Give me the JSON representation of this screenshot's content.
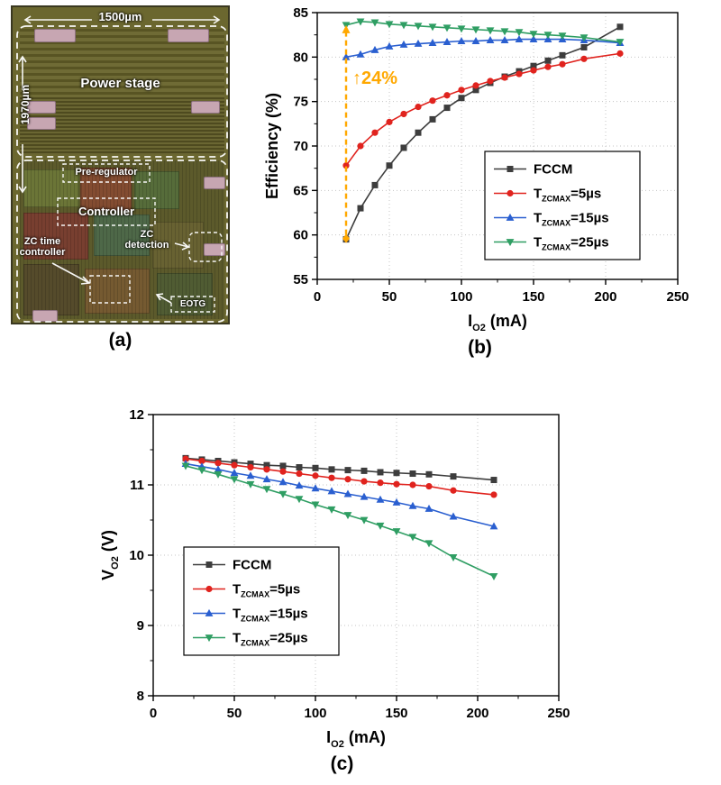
{
  "figure": {
    "caption_a": "(a)",
    "caption_b": "(b)",
    "caption_c": "(c)"
  },
  "die": {
    "width_label": "1500µm",
    "height_label": "1970µm",
    "power_stage": "Power stage",
    "pre_regulator": "Pre-regulator",
    "controller": "Controller",
    "zc_det_line1": "ZC",
    "zc_det_line2": "detection",
    "zc_time_line1": "ZC time",
    "zc_time_line2": "controller",
    "eotg": "EOTG"
  },
  "chart_data": [
    {
      "type": "line",
      "panel": "b",
      "title": "",
      "xlabel_parts": [
        {
          "t": "I"
        },
        {
          "t": "O2",
          "sub": true
        },
        {
          "t": " (mA)"
        }
      ],
      "ylabel_parts": [
        {
          "t": "Efficiency (%)"
        }
      ],
      "xlim": [
        0,
        250
      ],
      "ylim": [
        55,
        85
      ],
      "xticks": [
        0,
        50,
        100,
        150,
        200,
        250
      ],
      "yticks": [
        55,
        60,
        65,
        70,
        75,
        80,
        85
      ],
      "grid": true,
      "legend_position": "inside-right-bottom",
      "x": [
        20,
        30,
        40,
        50,
        60,
        70,
        80,
        90,
        100,
        110,
        120,
        130,
        140,
        150,
        160,
        170,
        185,
        210
      ],
      "series": [
        {
          "name": "FCCM",
          "label_parts": [
            {
              "t": "FCCM"
            }
          ],
          "color": "#3d3d3d",
          "marker": "square",
          "values": [
            59.5,
            63.0,
            65.6,
            67.8,
            69.8,
            71.5,
            73.0,
            74.3,
            75.4,
            76.3,
            77.1,
            77.8,
            78.4,
            79.0,
            79.6,
            80.2,
            81.1,
            83.4
          ]
        },
        {
          "name": "TZCMAX=5us",
          "label_parts": [
            {
              "t": "T"
            },
            {
              "t": "ZCMAX",
              "sub": true
            },
            {
              "t": "=5µs"
            }
          ],
          "color": "#e0231e",
          "marker": "circle",
          "values": [
            67.8,
            70.0,
            71.5,
            72.7,
            73.6,
            74.4,
            75.1,
            75.7,
            76.3,
            76.8,
            77.3,
            77.7,
            78.1,
            78.5,
            78.9,
            79.2,
            79.8,
            80.4
          ]
        },
        {
          "name": "TZCMAX=15us",
          "label_parts": [
            {
              "t": "T"
            },
            {
              "t": "ZCMAX",
              "sub": true
            },
            {
              "t": "=15µs"
            }
          ],
          "color": "#2a5fd0",
          "marker": "triangle-up",
          "values": [
            80.0,
            80.3,
            80.8,
            81.2,
            81.4,
            81.5,
            81.6,
            81.7,
            81.8,
            81.8,
            81.9,
            81.9,
            82.0,
            82.0,
            82.0,
            82.0,
            81.9,
            81.6
          ]
        },
        {
          "name": "TZCMAX=25us",
          "label_parts": [
            {
              "t": "T"
            },
            {
              "t": "ZCMAX",
              "sub": true
            },
            {
              "t": "=25µs"
            }
          ],
          "color": "#2f9e63",
          "marker": "triangle-down",
          "values": [
            83.6,
            84.0,
            83.9,
            83.7,
            83.6,
            83.5,
            83.4,
            83.3,
            83.2,
            83.1,
            83.0,
            82.9,
            82.8,
            82.6,
            82.5,
            82.4,
            82.2,
            81.7
          ]
        }
      ],
      "annotation": {
        "x": 20,
        "y_from": 59.6,
        "y_to": 83.6,
        "arrow": "↑",
        "label": "24%",
        "label_y": 77,
        "color": "#FFA800"
      }
    },
    {
      "type": "line",
      "panel": "c",
      "title": "",
      "xlabel_parts": [
        {
          "t": "I"
        },
        {
          "t": "O2",
          "sub": true
        },
        {
          "t": " (mA)"
        }
      ],
      "ylabel_parts": [
        {
          "t": "V"
        },
        {
          "t": "O2",
          "sub": true
        },
        {
          "t": " (V)"
        }
      ],
      "xlim": [
        0,
        250
      ],
      "ylim": [
        8,
        12
      ],
      "xticks": [
        0,
        50,
        100,
        150,
        200,
        250
      ],
      "yticks": [
        8,
        9,
        10,
        11,
        12
      ],
      "grid": true,
      "legend_position": "inside-left-middle",
      "x": [
        20,
        30,
        40,
        50,
        60,
        70,
        80,
        90,
        100,
        110,
        120,
        130,
        140,
        150,
        160,
        170,
        185,
        210
      ],
      "series": [
        {
          "name": "FCCM",
          "label_parts": [
            {
              "t": "FCCM"
            }
          ],
          "color": "#3d3d3d",
          "marker": "square",
          "values": [
            11.38,
            11.36,
            11.34,
            11.32,
            11.3,
            11.28,
            11.27,
            11.25,
            11.24,
            11.22,
            11.21,
            11.2,
            11.18,
            11.17,
            11.16,
            11.15,
            11.12,
            11.07
          ]
        },
        {
          "name": "TZCMAX=5us",
          "label_parts": [
            {
              "t": "T"
            },
            {
              "t": "ZCMAX",
              "sub": true
            },
            {
              "t": "=5µs"
            }
          ],
          "color": "#e0231e",
          "marker": "circle",
          "values": [
            11.37,
            11.34,
            11.31,
            11.28,
            11.25,
            11.22,
            11.19,
            11.16,
            11.13,
            11.1,
            11.08,
            11.05,
            11.03,
            11.01,
            11.0,
            10.98,
            10.92,
            10.86
          ]
        },
        {
          "name": "TZCMAX=15us",
          "label_parts": [
            {
              "t": "T"
            },
            {
              "t": "ZCMAX",
              "sub": true
            },
            {
              "t": "=15µs"
            }
          ],
          "color": "#2a5fd0",
          "marker": "triangle-up",
          "values": [
            11.3,
            11.26,
            11.22,
            11.17,
            11.13,
            11.08,
            11.04,
            10.99,
            10.95,
            10.91,
            10.87,
            10.83,
            10.79,
            10.75,
            10.7,
            10.66,
            10.55,
            10.41
          ]
        },
        {
          "name": "TZCMAX=25us",
          "label_parts": [
            {
              "t": "T"
            },
            {
              "t": "ZCMAX",
              "sub": true
            },
            {
              "t": "=25µs"
            }
          ],
          "color": "#2f9e63",
          "marker": "triangle-down",
          "values": [
            11.27,
            11.21,
            11.15,
            11.08,
            11.01,
            10.94,
            10.87,
            10.8,
            10.72,
            10.65,
            10.57,
            10.5,
            10.42,
            10.34,
            10.26,
            10.17,
            9.97,
            9.7
          ]
        }
      ]
    }
  ]
}
